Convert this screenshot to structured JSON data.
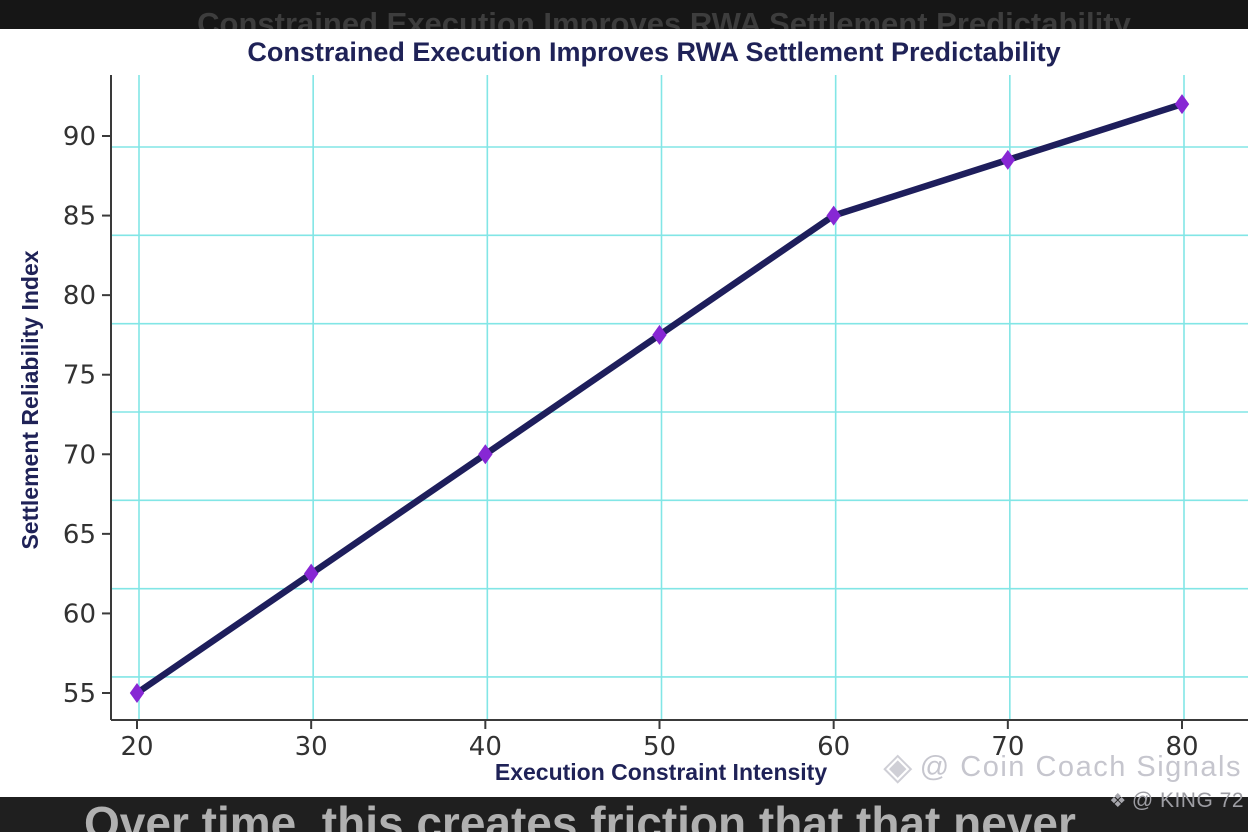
{
  "overlay": {
    "top_echo_title": "Constrained Execution Improves RWA Settlement Predictability",
    "bottom_caption": "Over time, this creates friction that that never",
    "king_watermark": "@ KING 72",
    "king_logo_icon": "binance-diamond",
    "coin_watermark": "@ Coin Coach Signals",
    "coin_logo_icon": "diamond-outline"
  },
  "chart_data": {
    "type": "line",
    "title": "Constrained Execution Improves RWA Settlement Predictability",
    "xlabel": "Execution Constraint Intensity",
    "ylabel": "Settlement Reliability Index",
    "x": [
      20,
      30,
      40,
      50,
      60,
      70,
      80
    ],
    "series": [
      {
        "name": "Settlement Reliability Index",
        "values": [
          55,
          62.5,
          70,
          77.5,
          85,
          88.5,
          92
        ]
      }
    ],
    "xticks": [
      20,
      30,
      40,
      50,
      60,
      70,
      80
    ],
    "yticks": [
      55,
      60,
      65,
      70,
      75,
      80,
      85,
      90
    ],
    "xlim": [
      18.5,
      83.8
    ],
    "ylim": [
      53.2,
      94.3
    ],
    "grid": true,
    "legend": false,
    "marker": "diamond",
    "line_color": "#1e1e5c",
    "marker_color": "#8727d4",
    "grid_color": "#82e6e6"
  },
  "colors": {
    "top_band": "#161616",
    "bottom_band": "#1f1f1f",
    "panel": "#ffffff",
    "navy_text": "#1f2257",
    "tick_text": "#323232",
    "spine": "#3a3a3a",
    "echo_text": "#3d3d3d",
    "caption_text": "#b0b0b0",
    "watermark_text": "#c6c6ce",
    "king_text": "#9d9da3"
  }
}
